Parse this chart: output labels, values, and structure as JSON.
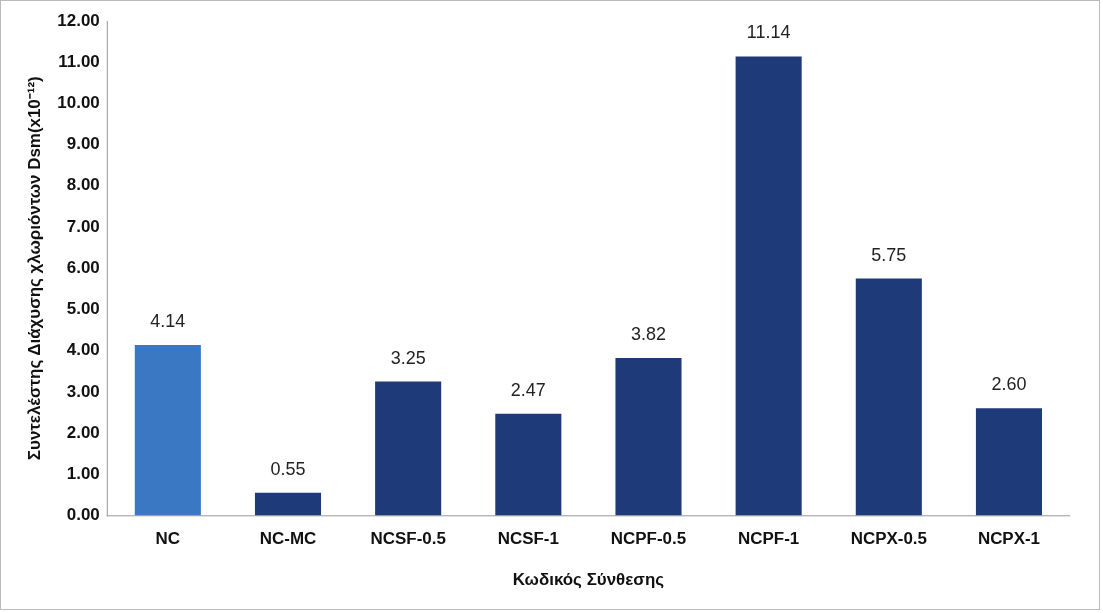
{
  "chart_data": {
    "type": "bar",
    "xlabel": "Κωδικός Σύνθεσης",
    "ylabel": "Συντελέστης Διάχυσης χλωριόντων Dsm(x10⁻¹²)",
    "categories": [
      "NC",
      "NC-MC",
      "NCSF-0.5",
      "NCSF-1",
      "NCPF-0.5",
      "NCPF-1",
      "NCPX-0.5",
      "NCPX-1"
    ],
    "values": [
      4.14,
      0.55,
      3.25,
      2.47,
      3.82,
      11.14,
      5.75,
      2.6
    ],
    "value_labels": [
      "4.14",
      "0.55",
      "3.25",
      "2.47",
      "3.82",
      "11.14",
      "5.75",
      "2.60"
    ],
    "colors": [
      "#3a78c4",
      "#1f3a78",
      "#1f3a78",
      "#1f3a78",
      "#1f3a78",
      "#1f3a78",
      "#1f3a78",
      "#1f3a78"
    ],
    "ylim": [
      0,
      12
    ],
    "yticks": [
      {
        "value": 0,
        "label": "0.00"
      },
      {
        "value": 1,
        "label": "1.00"
      },
      {
        "value": 2,
        "label": "2.00"
      },
      {
        "value": 3,
        "label": "3.00"
      },
      {
        "value": 4,
        "label": "4.00"
      },
      {
        "value": 5,
        "label": "5.00"
      },
      {
        "value": 6,
        "label": "6.00"
      },
      {
        "value": 7,
        "label": "7.00"
      },
      {
        "value": 8,
        "label": "8.00"
      },
      {
        "value": 9,
        "label": "9.00"
      },
      {
        "value": 10,
        "label": "10.00"
      },
      {
        "value": 11,
        "label": "11.00"
      },
      {
        "value": 12,
        "label": "12.00"
      }
    ],
    "grid": false,
    "legend": false
  }
}
